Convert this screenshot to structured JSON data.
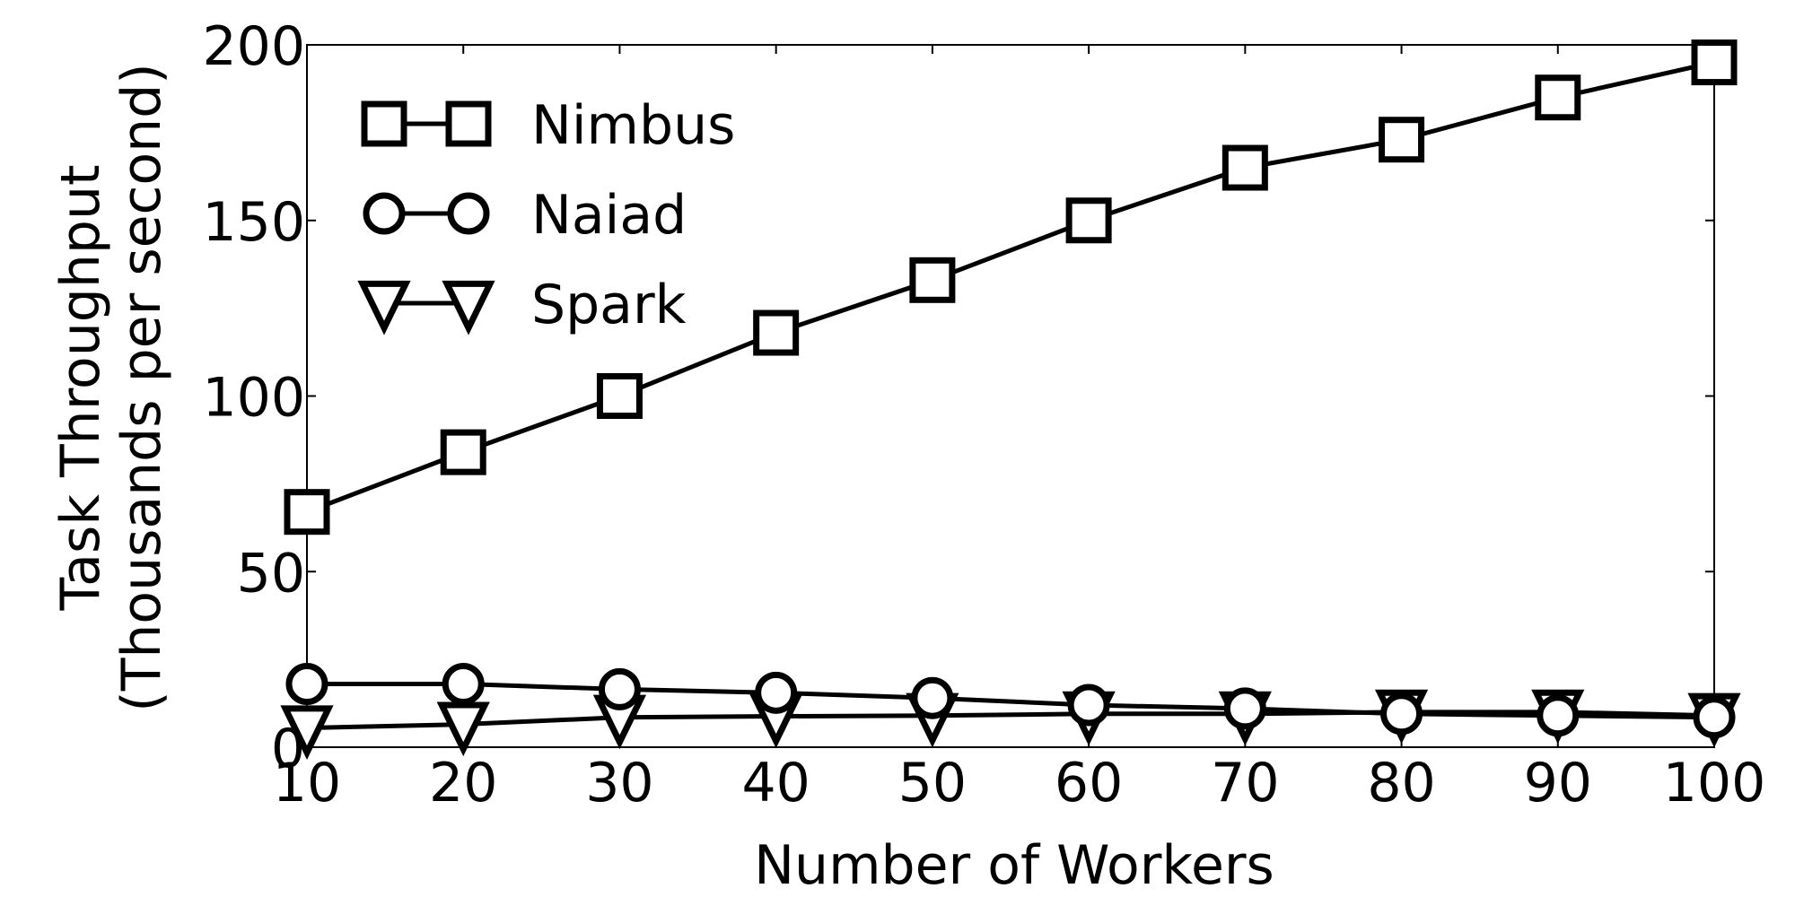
{
  "chart_data": {
    "type": "line",
    "title": "",
    "xlabel": "Number of Workers",
    "ylabel_line1": "Task Throughput",
    "ylabel_line2": "(Thousands per second)",
    "xlim": [
      10,
      100
    ],
    "ylim": [
      0,
      200
    ],
    "xticks": [
      10,
      20,
      30,
      40,
      50,
      60,
      70,
      80,
      90,
      100
    ],
    "yticks": [
      0,
      50,
      100,
      150,
      200
    ],
    "grid": false,
    "legend_position": "top-left",
    "x": [
      10,
      20,
      30,
      40,
      50,
      60,
      70,
      80,
      90,
      100
    ],
    "series": [
      {
        "name": "Nimbus",
        "marker": "square",
        "color": "#000000",
        "values": [
          67,
          84,
          100,
          118,
          133,
          150,
          165,
          173,
          185,
          195
        ]
      },
      {
        "name": "Naiad",
        "marker": "circle",
        "color": "#000000",
        "values": [
          18,
          18,
          16.5,
          15.5,
          14,
          12,
          11,
          9.5,
          9,
          8.5
        ]
      },
      {
        "name": "Spark",
        "marker": "triangle-down",
        "color": "#000000",
        "values": [
          5.5,
          6.5,
          8.5,
          8.8,
          9,
          9.5,
          9.5,
          10,
          10,
          9
        ]
      }
    ]
  }
}
